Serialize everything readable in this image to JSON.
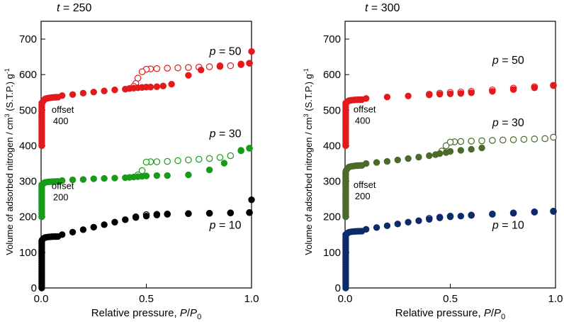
{
  "chart_data": [
    {
      "type": "scatter",
      "title": "t = 250",
      "xlabel": "Relative pressure, P/P0",
      "ylabel": "Volume of adsorbed nitrogen / cm3 (S.T.P.) g-1",
      "xlim": [
        0,
        1
      ],
      "ylim": [
        0,
        750
      ],
      "xticks": [
        "0.0",
        "0.5",
        "1.0"
      ],
      "yticks": [
        "0",
        "100",
        "200",
        "300",
        "400",
        "500",
        "600",
        "700"
      ],
      "grid": false,
      "legend": "none",
      "series_labels": [
        {
          "text": "p = 50",
          "x": 0.8,
          "y": 655
        },
        {
          "text": "p = 30",
          "x": 0.8,
          "y": 424
        },
        {
          "text": "p = 10",
          "x": 0.8,
          "y": 167
        }
      ],
      "offset_labels": [
        {
          "line1": "offset",
          "line2": "400",
          "x": 0.05,
          "y": 493
        },
        {
          "line1": "offset",
          "line2": "200",
          "x": 0.05,
          "y": 278
        }
      ],
      "series": [
        {
          "label": "p = 50",
          "color": "#e31a1c",
          "uptake_rise": [
            400,
            520,
            537
          ],
          "adsorption": [
            [
              0.1,
              541
            ],
            [
              0.15,
              544
            ],
            [
              0.2,
              548
            ],
            [
              0.25,
              551
            ],
            [
              0.3,
              554
            ],
            [
              0.35,
              557
            ],
            [
              0.4,
              559
            ],
            [
              0.42,
              561
            ],
            [
              0.44,
              562
            ],
            [
              0.46,
              563
            ],
            [
              0.48,
              564
            ],
            [
              0.5,
              565
            ],
            [
              0.52,
              565
            ],
            [
              0.55,
              566
            ],
            [
              0.58,
              568
            ],
            [
              0.62,
              573
            ],
            [
              0.7,
              598
            ],
            [
              0.76,
              613
            ],
            [
              0.85,
              625
            ],
            [
              0.95,
              630
            ],
            [
              0.99,
              632
            ],
            [
              1.0,
              665
            ]
          ],
          "desorption": [
            [
              0.99,
              632
            ],
            [
              0.95,
              628
            ],
            [
              0.9,
              625
            ],
            [
              0.85,
              623
            ],
            [
              0.8,
              622
            ],
            [
              0.75,
              621
            ],
            [
              0.7,
              620
            ],
            [
              0.65,
              619
            ],
            [
              0.6,
              618
            ],
            [
              0.55,
              617
            ],
            [
              0.52,
              616
            ],
            [
              0.5,
              615
            ],
            [
              0.48,
              608
            ],
            [
              0.46,
              590
            ],
            [
              0.45,
              575
            ],
            [
              0.44,
              567
            ]
          ]
        },
        {
          "label": "p = 30",
          "color": "#1a9a1a",
          "uptake_rise": [
            200,
            290,
            300
          ],
          "adsorption": [
            [
              0.1,
              302
            ],
            [
              0.15,
              304
            ],
            [
              0.2,
              305
            ],
            [
              0.25,
              307
            ],
            [
              0.3,
              308
            ],
            [
              0.35,
              309
            ],
            [
              0.4,
              310
            ],
            [
              0.42,
              311
            ],
            [
              0.44,
              312
            ],
            [
              0.46,
              313
            ],
            [
              0.48,
              314
            ],
            [
              0.5,
              315
            ],
            [
              0.55,
              316
            ],
            [
              0.6,
              316
            ],
            [
              0.7,
              318
            ],
            [
              0.8,
              332
            ],
            [
              0.87,
              351
            ],
            [
              0.95,
              387
            ],
            [
              0.99,
              393
            ]
          ],
          "desorption": [
            [
              0.99,
              393
            ],
            [
              0.95,
              386
            ],
            [
              0.9,
              372
            ],
            [
              0.85,
              367
            ],
            [
              0.8,
              364
            ],
            [
              0.75,
              362
            ],
            [
              0.7,
              360
            ],
            [
              0.65,
              358
            ],
            [
              0.6,
              356
            ],
            [
              0.55,
              355
            ],
            [
              0.52,
              355
            ],
            [
              0.5,
              354
            ],
            [
              0.48,
              330
            ],
            [
              0.46,
              318
            ]
          ]
        },
        {
          "label": "p = 10",
          "color": "#000000",
          "uptake_rise": [
            0,
            135,
            145
          ],
          "adsorption": [
            [
              0.1,
              150
            ],
            [
              0.15,
              157
            ],
            [
              0.2,
              164
            ],
            [
              0.25,
              171
            ],
            [
              0.3,
              178
            ],
            [
              0.35,
              185
            ],
            [
              0.4,
              192
            ],
            [
              0.45,
              198
            ],
            [
              0.5,
              202
            ],
            [
              0.55,
              205
            ],
            [
              0.6,
              207
            ],
            [
              0.7,
              209
            ],
            [
              0.8,
              210
            ],
            [
              0.9,
              211
            ],
            [
              0.99,
              212
            ],
            [
              1.0,
              248
            ]
          ],
          "desorption": [
            [
              0.99,
              212
            ],
            [
              0.9,
              211
            ],
            [
              0.8,
              210
            ],
            [
              0.7,
              209
            ],
            [
              0.6,
              208
            ],
            [
              0.55,
              207
            ],
            [
              0.5,
              206
            ],
            [
              0.45,
              200
            ]
          ]
        }
      ]
    },
    {
      "type": "scatter",
      "title": "t = 300",
      "xlabel": "Relative pressure, P/P0",
      "ylabel": "Volume of adsorbed nitrogen / cm3 (S.T.P.) g-1",
      "xlim": [
        0,
        1
      ],
      "ylim": [
        0,
        750
      ],
      "xticks": [
        "0.0",
        "0.5",
        "1.0"
      ],
      "yticks": [
        "0",
        "100",
        "200",
        "300",
        "400",
        "500",
        "600",
        "700"
      ],
      "grid": false,
      "legend": "none",
      "series_labels": [
        {
          "text": "p = 50",
          "x": 0.7,
          "y": 630
        },
        {
          "text": "p = 30",
          "x": 0.7,
          "y": 455
        },
        {
          "text": "p = 10",
          "x": 0.7,
          "y": 167
        }
      ],
      "offset_labels": [
        {
          "line1": "offset",
          "line2": "400",
          "x": 0.04,
          "y": 494
        },
        {
          "line1": "offset",
          "line2": "200",
          "x": 0.04,
          "y": 281
        }
      ],
      "series": [
        {
          "label": "p = 50",
          "color": "#e31a1c",
          "uptake_rise": [
            400,
            520,
            530
          ],
          "adsorption": [
            [
              0.1,
              533
            ],
            [
              0.2,
              537
            ],
            [
              0.3,
              540
            ],
            [
              0.4,
              543
            ],
            [
              0.45,
              545
            ],
            [
              0.5,
              546
            ],
            [
              0.55,
              547
            ],
            [
              0.6,
              549
            ],
            [
              0.7,
              553
            ],
            [
              0.8,
              558
            ],
            [
              0.9,
              563
            ],
            [
              0.99,
              569
            ]
          ],
          "desorption": [
            [
              0.99,
              570
            ],
            [
              0.9,
              566
            ],
            [
              0.8,
              562
            ],
            [
              0.7,
              557
            ],
            [
              0.6,
              553
            ],
            [
              0.55,
              551
            ],
            [
              0.5,
              550
            ],
            [
              0.45,
              548
            ],
            [
              0.4,
              545
            ]
          ]
        },
        {
          "label": "p = 30",
          "color": "#4a6b2a",
          "uptake_rise": [
            200,
            330,
            345
          ],
          "adsorption": [
            [
              0.1,
              350
            ],
            [
              0.15,
              353
            ],
            [
              0.2,
              356
            ],
            [
              0.25,
              360
            ],
            [
              0.3,
              364
            ],
            [
              0.35,
              368
            ],
            [
              0.4,
              372
            ],
            [
              0.43,
              375
            ],
            [
              0.45,
              378
            ],
            [
              0.48,
              381
            ],
            [
              0.5,
              384
            ],
            [
              0.55,
              387
            ],
            [
              0.6,
              390
            ],
            [
              0.65,
              394
            ]
          ],
          "desorption": [
            [
              0.99,
              424
            ],
            [
              0.95,
              420
            ],
            [
              0.9,
              419
            ],
            [
              0.85,
              418
            ],
            [
              0.8,
              417
            ],
            [
              0.75,
              416
            ],
            [
              0.7,
              415
            ],
            [
              0.65,
              414
            ],
            [
              0.6,
              413
            ],
            [
              0.55,
              412
            ],
            [
              0.52,
              411
            ],
            [
              0.5,
              410
            ],
            [
              0.48,
              400
            ],
            [
              0.46,
              385
            ]
          ]
        },
        {
          "label": "p = 10",
          "color": "#0d2b6b",
          "uptake_rise": [
            0,
            150,
            160
          ],
          "adsorption": [
            [
              0.1,
              165
            ],
            [
              0.15,
              170
            ],
            [
              0.2,
              175
            ],
            [
              0.25,
              180
            ],
            [
              0.3,
              185
            ],
            [
              0.35,
              189
            ],
            [
              0.4,
              193
            ],
            [
              0.45,
              197
            ],
            [
              0.5,
              200
            ],
            [
              0.55,
              202
            ],
            [
              0.6,
              204
            ],
            [
              0.7,
              207
            ],
            [
              0.8,
              210
            ],
            [
              0.9,
              213
            ],
            [
              0.99,
              215
            ]
          ],
          "desorption": [
            [
              0.99,
              216
            ],
            [
              0.9,
              214
            ],
            [
              0.8,
              211
            ],
            [
              0.7,
              208
            ],
            [
              0.6,
              205
            ],
            [
              0.5,
              202
            ],
            [
              0.45,
              199
            ],
            [
              0.4,
              196
            ]
          ]
        }
      ]
    }
  ]
}
